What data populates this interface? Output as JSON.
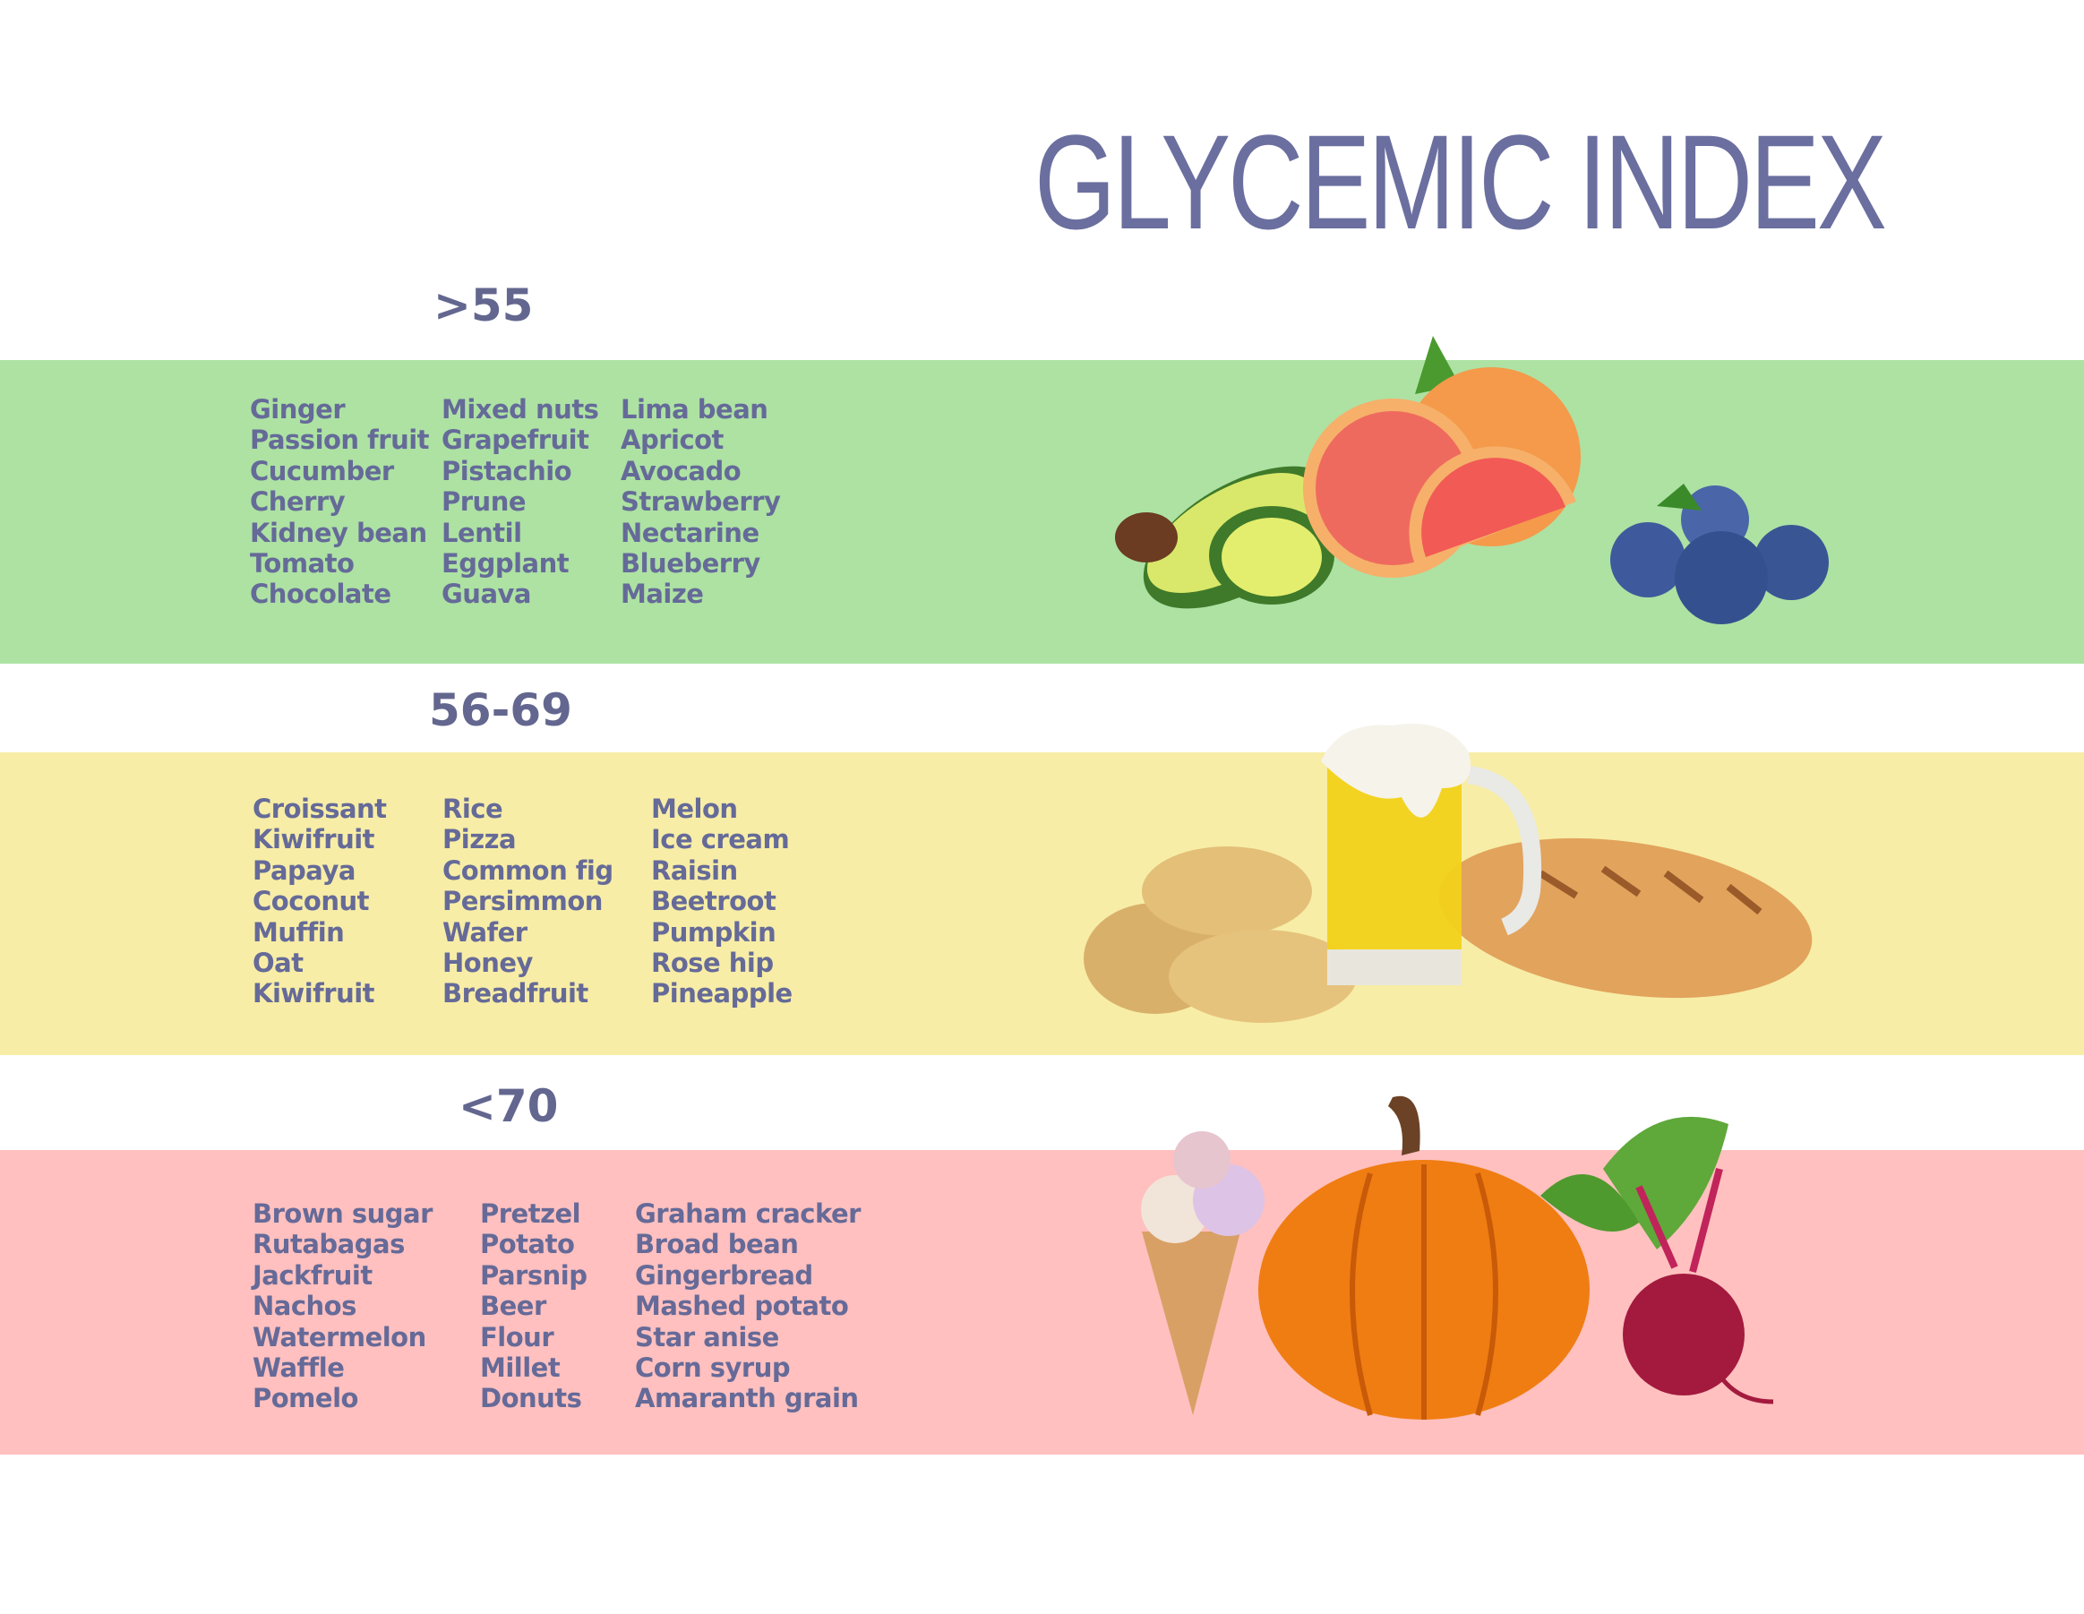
{
  "title": "GLYCEMIC INDEX",
  "sections": [
    {
      "range": ">55",
      "color": "#ade2a3",
      "columns": [
        [
          "Ginger",
          "Passion fruit",
          "Cucumber",
          "Cherry",
          "Kidney bean",
          "Tomato",
          "Chocolate"
        ],
        [
          "Mixed nuts",
          "Grapefruit",
          "Pistachio",
          "Prune",
          "Lentil",
          "Eggplant",
          "Guava"
        ],
        [
          "Lima bean",
          "Apricot",
          "Avocado",
          "Strawberry",
          "Nectarine",
          "Blueberry",
          "Maize"
        ]
      ],
      "illustrations": [
        "avocado",
        "grapefruit",
        "blueberries"
      ]
    },
    {
      "range": "56-69",
      "color": "#f7eda6",
      "columns": [
        [
          "Croissant",
          "Kiwifruit",
          "Papaya",
          "Coconut",
          "Muffin",
          "Oat",
          "Kiwifruit"
        ],
        [
          "Rice",
          "Pizza",
          "Common fig",
          "Persimmon",
          "Wafer",
          "Honey",
          "Breadfruit"
        ],
        [
          "Melon",
          "Ice cream",
          "Raisin",
          "Beetroot",
          "Pumpkin",
          "Rose hip",
          "Pineapple"
        ]
      ],
      "illustrations": [
        "potatoes",
        "beer-mug",
        "bread-loaf"
      ]
    },
    {
      "range": "<70",
      "color": "#ffc0bf",
      "columns": [
        [
          "Brown sugar",
          "Rutabagas",
          "Jackfruit",
          "Nachos",
          "Watermelon",
          "Waffle",
          "Pomelo"
        ],
        [
          "Pretzel",
          "Potato",
          "Parsnip",
          "Beer",
          "Flour",
          "Millet",
          "Donuts"
        ],
        [
          "Graham cracker",
          "Broad bean",
          "Gingerbread",
          "Mashed potato",
          "Star anise",
          "Corn syrup",
          "Amaranth grain"
        ]
      ],
      "illustrations": [
        "ice-cream-cone",
        "pumpkin",
        "beetroot"
      ]
    }
  ]
}
